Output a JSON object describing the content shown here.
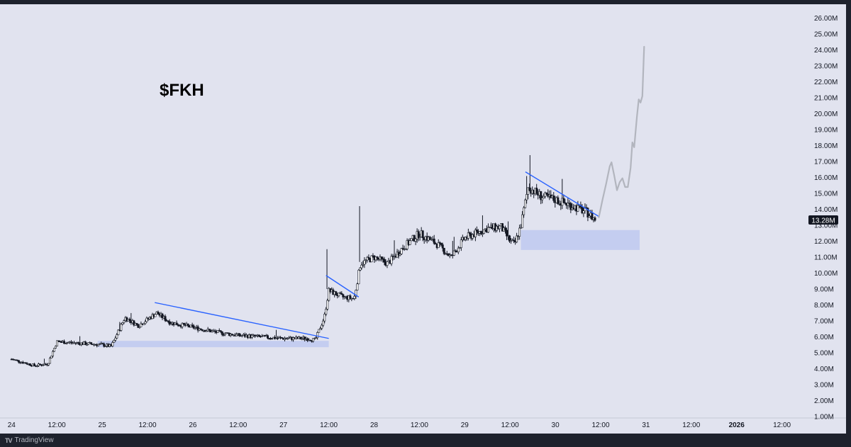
{
  "footer": {
    "brand": "TradingView",
    "logo": "TV"
  },
  "colors": {
    "background": "#e1e3ef",
    "candle_up": "#ffffff",
    "candle_down": "#131722",
    "wick": "#131722",
    "trendline": "#2962ff",
    "zone": "#b9c6f0",
    "projection": "#b2b5be",
    "price_label_bg": "#131722",
    "price_label_text": "#ffffff"
  },
  "chart_data": {
    "type": "candlestick",
    "title": "$FKH",
    "current_price_label": "13.28M",
    "y_axis": {
      "ticks": [
        "1.00M",
        "2.00M",
        "3.00M",
        "4.00M",
        "5.00M",
        "6.00M",
        "7.00M",
        "8.00M",
        "9.00M",
        "10.00M",
        "11.00M",
        "12.00M",
        "13.00M",
        "14.00M",
        "15.00M",
        "16.00M",
        "17.00M",
        "18.00M",
        "19.00M",
        "20.00M",
        "21.00M",
        "22.00M",
        "23.00M",
        "24.00M",
        "25.00M",
        "26.00M"
      ],
      "range": [
        0.9,
        26.8
      ]
    },
    "x_axis": {
      "ticks": [
        {
          "label": "24",
          "bold": false
        },
        {
          "label": "12:00",
          "bold": false
        },
        {
          "label": "25",
          "bold": false
        },
        {
          "label": "12:00",
          "bold": false
        },
        {
          "label": "26",
          "bold": false
        },
        {
          "label": "12:00",
          "bold": false
        },
        {
          "label": "27",
          "bold": false
        },
        {
          "label": "12:00",
          "bold": false
        },
        {
          "label": "28",
          "bold": false
        },
        {
          "label": "12:00",
          "bold": false
        },
        {
          "label": "29",
          "bold": false
        },
        {
          "label": "12:00",
          "bold": false
        },
        {
          "label": "30",
          "bold": false
        },
        {
          "label": "12:00",
          "bold": false
        },
        {
          "label": "31",
          "bold": false
        },
        {
          "label": "12:00",
          "bold": false
        },
        {
          "label": "2026",
          "bold": true
        },
        {
          "label": "12:00",
          "bold": false
        }
      ]
    },
    "price_path": [
      [
        24.0,
        4.6
      ],
      [
        24.25,
        4.2
      ],
      [
        24.4,
        4.3
      ],
      [
        24.5,
        5.7
      ],
      [
        24.75,
        5.6
      ],
      [
        25.0,
        5.5
      ],
      [
        25.1,
        5.4
      ],
      [
        25.25,
        7.2
      ],
      [
        25.4,
        6.7
      ],
      [
        25.6,
        7.5
      ],
      [
        25.75,
        6.9
      ],
      [
        26.0,
        6.6
      ],
      [
        26.25,
        6.3
      ],
      [
        26.5,
        6.1
      ],
      [
        26.75,
        6.0
      ],
      [
        27.0,
        5.9
      ],
      [
        27.25,
        5.9
      ],
      [
        27.35,
        5.8
      ],
      [
        27.45,
        7.2
      ],
      [
        27.5,
        8.9
      ],
      [
        27.65,
        8.5
      ],
      [
        27.78,
        8.4
      ],
      [
        27.85,
        10.6
      ],
      [
        28.0,
        11.0
      ],
      [
        28.15,
        10.6
      ],
      [
        28.3,
        11.5
      ],
      [
        28.5,
        12.5
      ],
      [
        28.7,
        11.8
      ],
      [
        28.85,
        11.0
      ],
      [
        29.0,
        12.2
      ],
      [
        29.25,
        12.8
      ],
      [
        29.4,
        12.9
      ],
      [
        29.5,
        12.0
      ],
      [
        29.55,
        11.8
      ],
      [
        29.62,
        13.0
      ],
      [
        29.7,
        15.4
      ],
      [
        29.85,
        14.8
      ],
      [
        30.0,
        14.6
      ],
      [
        30.2,
        14.2
      ],
      [
        30.35,
        13.8
      ],
      [
        30.45,
        13.3
      ]
    ],
    "trendlines": [
      {
        "x1": 25.58,
        "y1": 8.15,
        "x2": 27.5,
        "y2": 5.9
      },
      {
        "x1": 27.47,
        "y1": 9.85,
        "x2": 27.83,
        "y2": 8.5
      },
      {
        "x1": 29.67,
        "y1": 16.35,
        "x2": 30.48,
        "y2": 13.55
      }
    ],
    "zones": [
      {
        "x1": 24.95,
        "x2": 27.5,
        "y1": 5.35,
        "y2": 5.75
      },
      {
        "x1": 29.62,
        "x2": 30.93,
        "y1": 11.45,
        "y2": 12.7
      }
    ],
    "projection_path": [
      [
        30.48,
        13.5
      ],
      [
        30.52,
        14.6
      ],
      [
        30.56,
        15.6
      ],
      [
        30.6,
        16.7
      ],
      [
        30.62,
        16.95
      ],
      [
        30.65,
        16.1
      ],
      [
        30.68,
        15.2
      ],
      [
        30.71,
        15.7
      ],
      [
        30.74,
        15.95
      ],
      [
        30.77,
        15.4
      ],
      [
        30.8,
        15.4
      ],
      [
        30.83,
        16.6
      ],
      [
        30.85,
        18.2
      ],
      [
        30.87,
        17.9
      ],
      [
        30.9,
        19.8
      ],
      [
        30.92,
        20.9
      ],
      [
        30.94,
        20.7
      ],
      [
        30.96,
        21.1
      ],
      [
        30.98,
        24.2
      ]
    ]
  }
}
